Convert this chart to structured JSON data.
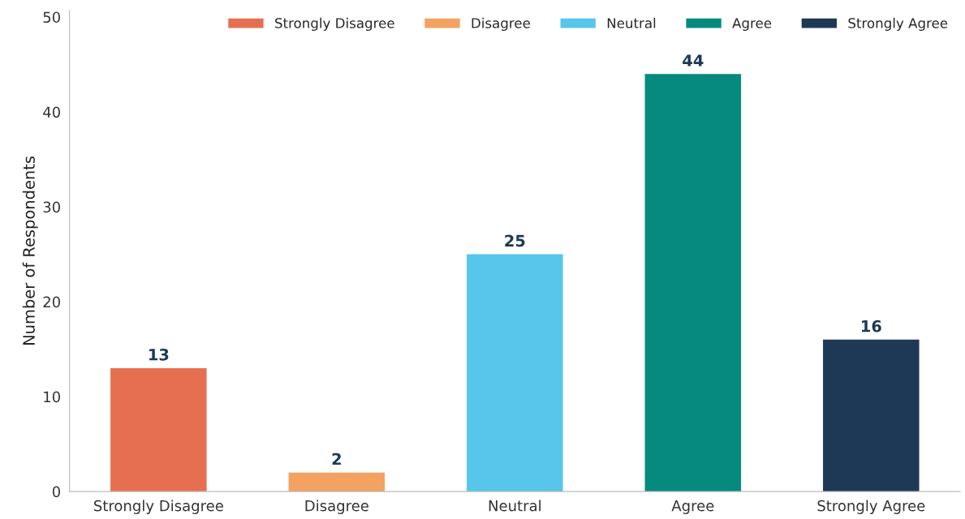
{
  "chart_data": {
    "type": "bar",
    "categories": [
      "Strongly Disagree",
      "Disagree",
      "Neutral",
      "Agree",
      "Strongly Agree"
    ],
    "series": [
      {
        "name": "Strongly Disagree",
        "color": "#e76f51",
        "values": [
          13,
          null,
          null,
          null,
          null
        ]
      },
      {
        "name": "Disagree",
        "color": "#f4a261",
        "values": [
          null,
          2,
          null,
          null,
          null
        ]
      },
      {
        "name": "Neutral",
        "color": "#56c6eb",
        "values": [
          null,
          null,
          25,
          null,
          null
        ]
      },
      {
        "name": "Agree",
        "color": "#068a7f",
        "values": [
          null,
          null,
          null,
          44,
          null
        ]
      },
      {
        "name": "Strongly Agree",
        "color": "#1d3956",
        "values": [
          null,
          null,
          null,
          null,
          16
        ]
      }
    ],
    "ylabel": "Number of Respondents",
    "ylim": [
      0,
      50.7
    ],
    "yticks": [
      0,
      10,
      20,
      30,
      40,
      50
    ],
    "data_labels": true,
    "legend": "top right",
    "grid": false
  }
}
